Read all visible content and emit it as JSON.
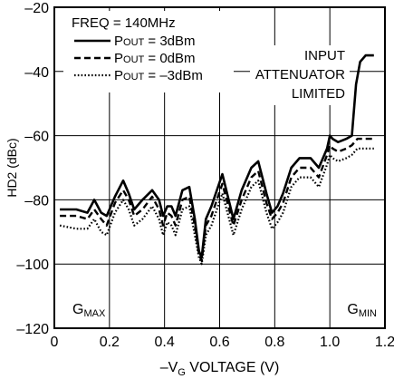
{
  "chart_data": {
    "type": "line",
    "title": "",
    "xlabel_prefix": "–V",
    "xlabel_sub": "G",
    "xlabel_suffix": " VOLTAGE (V)",
    "ylabel": "HD2 (dBc)",
    "xlim": [
      0,
      1.2
    ],
    "ylim": [
      -120,
      -20
    ],
    "x_ticks": [
      0,
      0.2,
      0.4,
      0.6,
      0.8,
      1.0,
      1.2
    ],
    "x_tick_labels": [
      "0",
      "0.2",
      "0.4",
      "0.6",
      "0.8",
      "1.0",
      "1.2"
    ],
    "y_ticks": [
      -120,
      -100,
      -80,
      -60,
      -40,
      -20
    ],
    "y_tick_labels": [
      "–120",
      "–100",
      "–80",
      "–60",
      "–40",
      "–20"
    ],
    "grid": true,
    "legend_title": "FREQ = 140MHz",
    "legend_position": "top-left",
    "series": [
      {
        "name": "POUT = 3dBm",
        "label_main": "P",
        "label_sub": "OUT",
        "label_rest": " = 3dBm",
        "style": "solid",
        "x": [
          0.02,
          0.08,
          0.12,
          0.145,
          0.17,
          0.19,
          0.22,
          0.25,
          0.27,
          0.29,
          0.32,
          0.355,
          0.38,
          0.395,
          0.41,
          0.425,
          0.44,
          0.465,
          0.49,
          0.51,
          0.525,
          0.535,
          0.55,
          0.57,
          0.61,
          0.65,
          0.68,
          0.715,
          0.74,
          0.77,
          0.79,
          0.81,
          0.83,
          0.86,
          0.89,
          0.93,
          0.96,
          0.99,
          1.0,
          1.01,
          1.03,
          1.06,
          1.08,
          1.095,
          1.11,
          1.13,
          1.16
        ],
        "y": [
          -83,
          -83,
          -84,
          -80,
          -84,
          -85,
          -79,
          -74,
          -78,
          -83,
          -80,
          -77,
          -80,
          -85,
          -82,
          -82,
          -85,
          -77,
          -76,
          -86,
          -96,
          -98,
          -86,
          -82,
          -72,
          -86,
          -77,
          -70,
          -68,
          -78,
          -84,
          -82,
          -78,
          -70,
          -67,
          -67,
          -70,
          -64,
          -60,
          -61,
          -62,
          -61,
          -60,
          -44,
          -37,
          -35,
          -35
        ]
      },
      {
        "name": "POUT = 0dBm",
        "label_main": "P",
        "label_sub": "OUT",
        "label_rest": " = 0dBm",
        "style": "dashed",
        "x": [
          0.02,
          0.08,
          0.12,
          0.145,
          0.17,
          0.19,
          0.22,
          0.25,
          0.27,
          0.29,
          0.32,
          0.355,
          0.38,
          0.395,
          0.41,
          0.425,
          0.44,
          0.465,
          0.49,
          0.51,
          0.525,
          0.535,
          0.55,
          0.57,
          0.61,
          0.65,
          0.68,
          0.715,
          0.74,
          0.77,
          0.79,
          0.81,
          0.83,
          0.86,
          0.89,
          0.93,
          0.96,
          0.99,
          1.0,
          1.01,
          1.03,
          1.06,
          1.08,
          1.1,
          1.13,
          1.16
        ],
        "y": [
          -85,
          -85,
          -86,
          -83,
          -86,
          -88,
          -81,
          -77,
          -80,
          -85,
          -83,
          -79,
          -83,
          -88,
          -84,
          -85,
          -88,
          -80,
          -79,
          -88,
          -97,
          -99,
          -88,
          -85,
          -75,
          -88,
          -80,
          -73,
          -71,
          -81,
          -86,
          -84,
          -81,
          -73,
          -70,
          -70,
          -73,
          -66,
          -63,
          -64,
          -65,
          -64,
          -63,
          -61,
          -61,
          -61
        ]
      },
      {
        "name": "POUT = –3dBm",
        "label_main": "P",
        "label_sub": "OUT",
        "label_rest": " = –3dBm",
        "style": "dotted",
        "x": [
          0.02,
          0.08,
          0.12,
          0.145,
          0.17,
          0.19,
          0.22,
          0.25,
          0.27,
          0.29,
          0.32,
          0.355,
          0.38,
          0.395,
          0.41,
          0.425,
          0.44,
          0.465,
          0.49,
          0.51,
          0.525,
          0.535,
          0.55,
          0.57,
          0.61,
          0.65,
          0.68,
          0.715,
          0.74,
          0.77,
          0.79,
          0.81,
          0.83,
          0.86,
          0.89,
          0.93,
          0.96,
          0.99,
          1.0,
          1.01,
          1.03,
          1.06,
          1.08,
          1.1,
          1.13,
          1.16
        ],
        "y": [
          -88,
          -89,
          -89,
          -86,
          -90,
          -91,
          -84,
          -80,
          -83,
          -88,
          -86,
          -82,
          -86,
          -91,
          -87,
          -88,
          -91,
          -83,
          -82,
          -91,
          -98,
          -100,
          -91,
          -88,
          -78,
          -91,
          -83,
          -76,
          -74,
          -84,
          -89,
          -87,
          -84,
          -76,
          -73,
          -73,
          -76,
          -69,
          -66,
          -67,
          -68,
          -67,
          -66,
          -64,
          -64,
          -64
        ]
      }
    ],
    "annotations": {
      "input_attenuator": [
        "INPUT",
        "ATTENUATOR",
        "LIMITED"
      ],
      "gmax_main": "G",
      "gmax_sub": "MAX",
      "gmin_main": "G",
      "gmin_sub": "MIN"
    }
  }
}
